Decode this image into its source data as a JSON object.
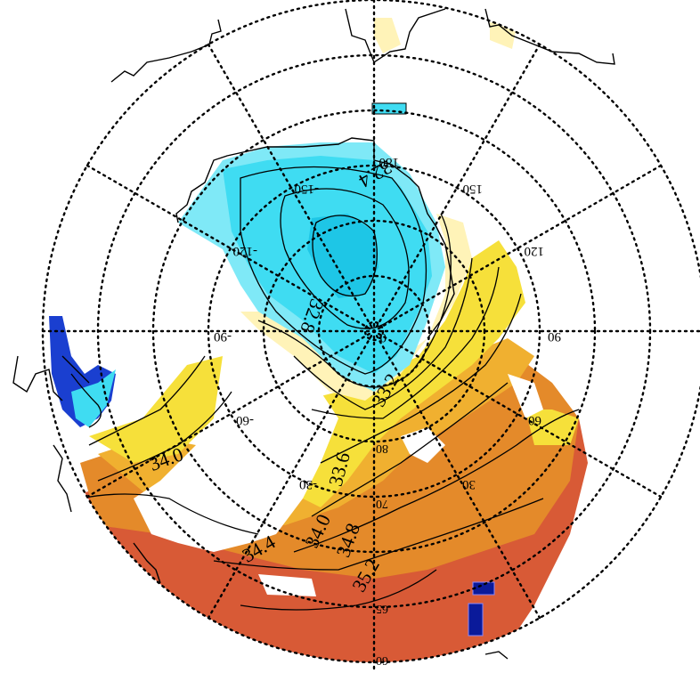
{
  "colors": {
    "fresh_dark": "#1ec6e6",
    "fresh": "#3fdcf2",
    "fresh_light": "#7fe9f7",
    "mid": "#fff3b8",
    "yellow": "#f6e03a",
    "orange_light": "#f0b030",
    "orange": "#e48a2a",
    "red": "#d85a36",
    "deep_blue": "#1a3fd0",
    "navy": "#0a1a9a"
  },
  "longitude_labels": [
    "180",
    "150",
    "120",
    "90",
    "60",
    "30",
    "0",
    "-30",
    "-60",
    "-90",
    "-120",
    "-150"
  ],
  "latitude_labels": [
    "60",
    "65",
    "70",
    "80"
  ],
  "contour_labels": [
    "32.4",
    "32.8",
    "33.2",
    "33.6",
    "34.0",
    "34.4",
    "34.8",
    "35.2",
    "34.0"
  ]
}
